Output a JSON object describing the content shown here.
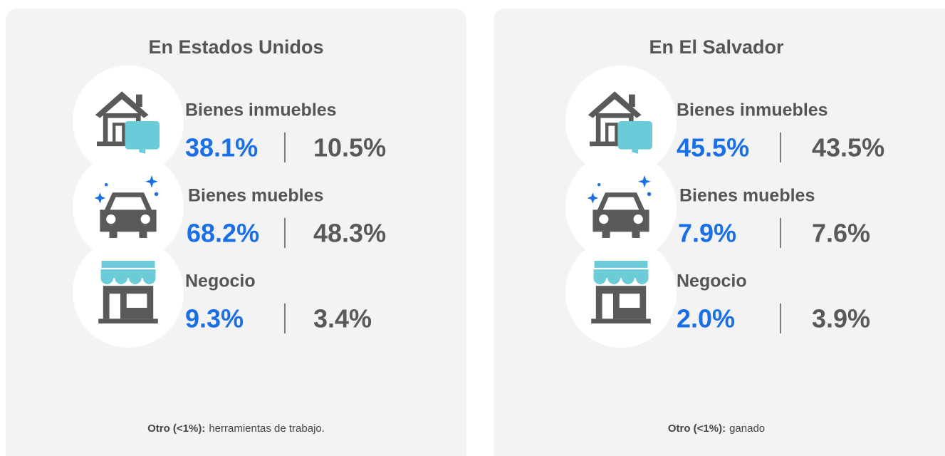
{
  "panels": [
    {
      "title": "En Estados Unidos",
      "items": [
        {
          "label": "Bienes inmuebles",
          "values": [
            "38.1%",
            "10.5%"
          ]
        },
        {
          "label": "Bienes muebles",
          "values": [
            "68.2%",
            "48.3%"
          ]
        },
        {
          "label": "Negocio",
          "values": [
            "9.3%",
            "3.4%"
          ]
        }
      ],
      "note": {
        "label": "Otro (<1%):",
        "text": "herramientas de trabajo."
      }
    },
    {
      "title": "En El Salvador",
      "items": [
        {
          "label": "Bienes inmuebles",
          "values": [
            "45.5%",
            "43.5%"
          ]
        },
        {
          "label": "Bienes muebles",
          "values": [
            "7.9%",
            "7.6%"
          ]
        },
        {
          "label": "Negocio",
          "values": [
            "2.0%",
            "3.9%"
          ]
        }
      ],
      "note": {
        "label": "Otro (<1%):",
        "text": "ganado"
      }
    }
  ]
}
